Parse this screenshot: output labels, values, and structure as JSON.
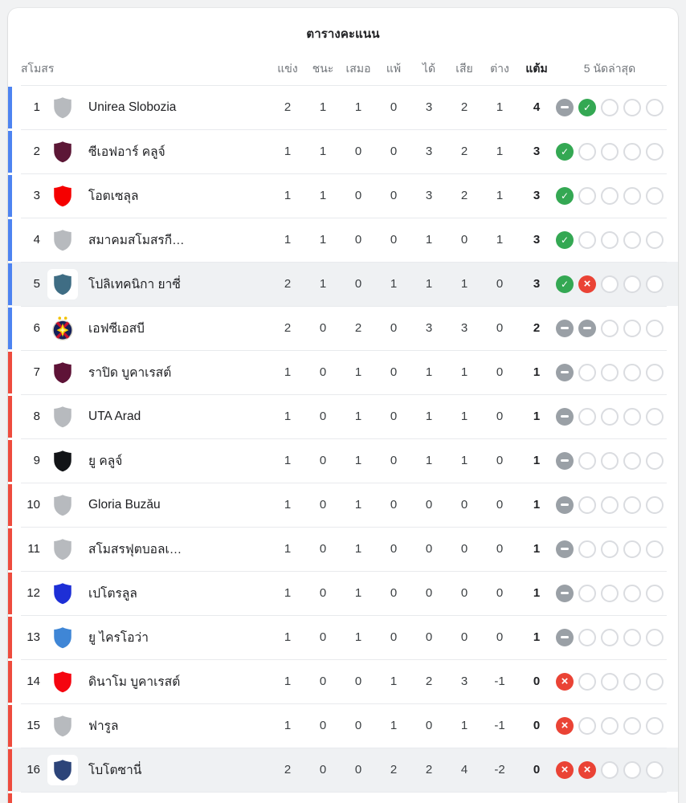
{
  "title": "ตารางคะแนน",
  "columns": {
    "club": "สโมสร",
    "played": "แข่ง",
    "won": "ชนะ",
    "drawn": "เสมอ",
    "lost": "แพ้",
    "gf": "ได้",
    "ga": "เสีย",
    "gd": "ต่าง",
    "points": "แต้ม",
    "form": "5 นัดล่าสุด"
  },
  "colors": {
    "zone_blue": "#4d83f1",
    "zone_red": "#ee4b3d",
    "form_win": "#34a853",
    "form_loss": "#ea4335",
    "form_draw": "#9aa0a6",
    "form_empty_border": "#dadce0",
    "highlight_bg": "#eff1f3",
    "gray_badge": "#b7babe"
  },
  "rows": [
    {
      "rank": "1",
      "name": "Unirea Slobozia",
      "badge": "shield",
      "badge_color": "#b7babe",
      "zone": "blue",
      "highlighted": false,
      "played": "2",
      "won": "1",
      "drawn": "1",
      "lost": "0",
      "gf": "3",
      "ga": "2",
      "gd": "1",
      "points": "4",
      "form": [
        "D",
        "W",
        "E",
        "E",
        "E"
      ]
    },
    {
      "rank": "2",
      "name": "ซีเอฟอาร์ คลูจ์",
      "badge": "shield",
      "badge_color": "#5c1736",
      "zone": "blue",
      "highlighted": false,
      "played": "1",
      "won": "1",
      "drawn": "0",
      "lost": "0",
      "gf": "3",
      "ga": "2",
      "gd": "1",
      "points": "3",
      "form": [
        "W",
        "E",
        "E",
        "E",
        "E"
      ]
    },
    {
      "rank": "3",
      "name": "โอตเซลุล",
      "badge": "shield",
      "badge_color": "#f50000",
      "zone": "blue",
      "highlighted": false,
      "played": "1",
      "won": "1",
      "drawn": "0",
      "lost": "0",
      "gf": "3",
      "ga": "2",
      "gd": "1",
      "points": "3",
      "form": [
        "W",
        "E",
        "E",
        "E",
        "E"
      ]
    },
    {
      "rank": "4",
      "name": "สมาคมสโมสรกี…",
      "badge": "shield",
      "badge_color": "#b7babe",
      "zone": "blue",
      "highlighted": false,
      "played": "1",
      "won": "1",
      "drawn": "0",
      "lost": "0",
      "gf": "1",
      "ga": "0",
      "gd": "1",
      "points": "3",
      "form": [
        "W",
        "E",
        "E",
        "E",
        "E"
      ]
    },
    {
      "rank": "5",
      "name": "โปลิเทคนิกา ยาซี่",
      "badge": "shield",
      "badge_color": "#3f6d84",
      "zone": "blue",
      "highlighted": true,
      "played": "2",
      "won": "1",
      "drawn": "0",
      "lost": "1",
      "gf": "1",
      "ga": "1",
      "gd": "0",
      "points": "3",
      "form": [
        "W",
        "L",
        "E",
        "E",
        "E"
      ]
    },
    {
      "rank": "6",
      "name": "เอฟซีเอสบี",
      "badge": "fcsb",
      "badge_color": "#15205a",
      "zone": "blue",
      "highlighted": false,
      "played": "2",
      "won": "0",
      "drawn": "2",
      "lost": "0",
      "gf": "3",
      "ga": "3",
      "gd": "0",
      "points": "2",
      "form": [
        "D",
        "D",
        "E",
        "E",
        "E"
      ]
    },
    {
      "rank": "7",
      "name": "ราปิด บูคาเรสต์",
      "badge": "shield",
      "badge_color": "#5e1337",
      "zone": "red",
      "highlighted": false,
      "played": "1",
      "won": "0",
      "drawn": "1",
      "lost": "0",
      "gf": "1",
      "ga": "1",
      "gd": "0",
      "points": "1",
      "form": [
        "D",
        "E",
        "E",
        "E",
        "E"
      ]
    },
    {
      "rank": "8",
      "name": "UTA Arad",
      "badge": "shield",
      "badge_color": "#b7babe",
      "zone": "red",
      "highlighted": false,
      "played": "1",
      "won": "0",
      "drawn": "1",
      "lost": "0",
      "gf": "1",
      "ga": "1",
      "gd": "0",
      "points": "1",
      "form": [
        "D",
        "E",
        "E",
        "E",
        "E"
      ]
    },
    {
      "rank": "9",
      "name": "ยู คลูจ์",
      "badge": "shield",
      "badge_color": "#121417",
      "zone": "red",
      "highlighted": false,
      "played": "1",
      "won": "0",
      "drawn": "1",
      "lost": "0",
      "gf": "1",
      "ga": "1",
      "gd": "0",
      "points": "1",
      "form": [
        "D",
        "E",
        "E",
        "E",
        "E"
      ]
    },
    {
      "rank": "10",
      "name": "Gloria Buzău",
      "badge": "shield",
      "badge_color": "#b7babe",
      "zone": "red",
      "highlighted": false,
      "played": "1",
      "won": "0",
      "drawn": "1",
      "lost": "0",
      "gf": "0",
      "ga": "0",
      "gd": "0",
      "points": "1",
      "form": [
        "D",
        "E",
        "E",
        "E",
        "E"
      ]
    },
    {
      "rank": "11",
      "name": "สโมสรฟุตบอลเ…",
      "badge": "shield",
      "badge_color": "#b7babe",
      "zone": "red",
      "highlighted": false,
      "played": "1",
      "won": "0",
      "drawn": "1",
      "lost": "0",
      "gf": "0",
      "ga": "0",
      "gd": "0",
      "points": "1",
      "form": [
        "D",
        "E",
        "E",
        "E",
        "E"
      ]
    },
    {
      "rank": "12",
      "name": "เปโตรลูล",
      "badge": "shield",
      "badge_color": "#1d2fd6",
      "zone": "red",
      "highlighted": false,
      "played": "1",
      "won": "0",
      "drawn": "1",
      "lost": "0",
      "gf": "0",
      "ga": "0",
      "gd": "0",
      "points": "1",
      "form": [
        "D",
        "E",
        "E",
        "E",
        "E"
      ]
    },
    {
      "rank": "13",
      "name": "ยู ไครโอว่า",
      "badge": "shield",
      "badge_color": "#3f86d6",
      "zone": "red",
      "highlighted": false,
      "played": "1",
      "won": "0",
      "drawn": "1",
      "lost": "0",
      "gf": "0",
      "ga": "0",
      "gd": "0",
      "points": "1",
      "form": [
        "D",
        "E",
        "E",
        "E",
        "E"
      ]
    },
    {
      "rank": "14",
      "name": "ดินาโม บูคาเรสต์",
      "badge": "shield",
      "badge_color": "#f50510",
      "zone": "red",
      "highlighted": false,
      "played": "1",
      "won": "0",
      "drawn": "0",
      "lost": "1",
      "gf": "2",
      "ga": "3",
      "gd": "-1",
      "points": "0",
      "form": [
        "L",
        "E",
        "E",
        "E",
        "E"
      ]
    },
    {
      "rank": "15",
      "name": "ฟารูล",
      "badge": "shield",
      "badge_color": "#b7babe",
      "zone": "red",
      "highlighted": false,
      "played": "1",
      "won": "0",
      "drawn": "0",
      "lost": "1",
      "gf": "0",
      "ga": "1",
      "gd": "-1",
      "points": "0",
      "form": [
        "L",
        "E",
        "E",
        "E",
        "E"
      ]
    },
    {
      "rank": "16",
      "name": "โบโตซานี่",
      "badge": "shield",
      "badge_color": "#2c4479",
      "zone": "red",
      "highlighted": true,
      "played": "2",
      "won": "0",
      "drawn": "0",
      "lost": "2",
      "gf": "2",
      "ga": "4",
      "gd": "-2",
      "points": "0",
      "form": [
        "L",
        "L",
        "E",
        "E",
        "E"
      ]
    }
  ]
}
